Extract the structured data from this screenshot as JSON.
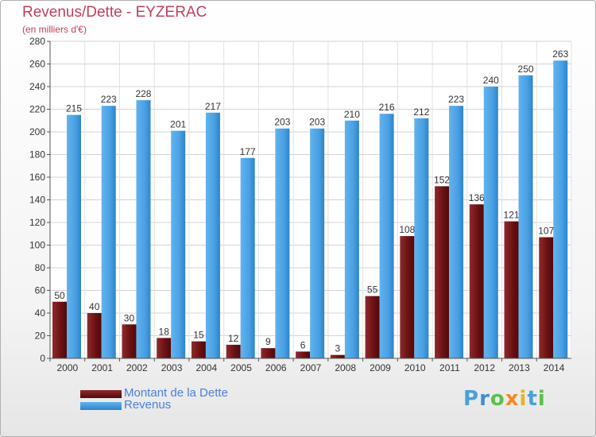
{
  "chart_data": {
    "type": "bar",
    "title": "Revenus/Dette - EYZERAC",
    "subtitle": "(en milliers d'€)",
    "categories": [
      "2000",
      "2001",
      "2002",
      "2003",
      "2004",
      "2005",
      "2006",
      "2007",
      "2008",
      "2009",
      "2010",
      "2011",
      "2012",
      "2013",
      "2014"
    ],
    "series": [
      {
        "name": "Montant de la Dette",
        "color": "#7a1518",
        "values": [
          50,
          40,
          30,
          18,
          15,
          12,
          9,
          6,
          3,
          55,
          108,
          152,
          136,
          121,
          107
        ]
      },
      {
        "name": "Revenus",
        "color": "#4aa3e8",
        "values": [
          215,
          223,
          228,
          201,
          217,
          177,
          203,
          203,
          210,
          216,
          212,
          223,
          240,
          250,
          263
        ]
      }
    ],
    "yticks": [
      0,
      20,
      40,
      60,
      80,
      100,
      120,
      140,
      160,
      180,
      200,
      220,
      240,
      260,
      280
    ],
    "ylim": [
      0,
      280
    ],
    "grid": true,
    "legend_position": "bottom-left"
  },
  "logo": {
    "text": "Proxiti"
  }
}
